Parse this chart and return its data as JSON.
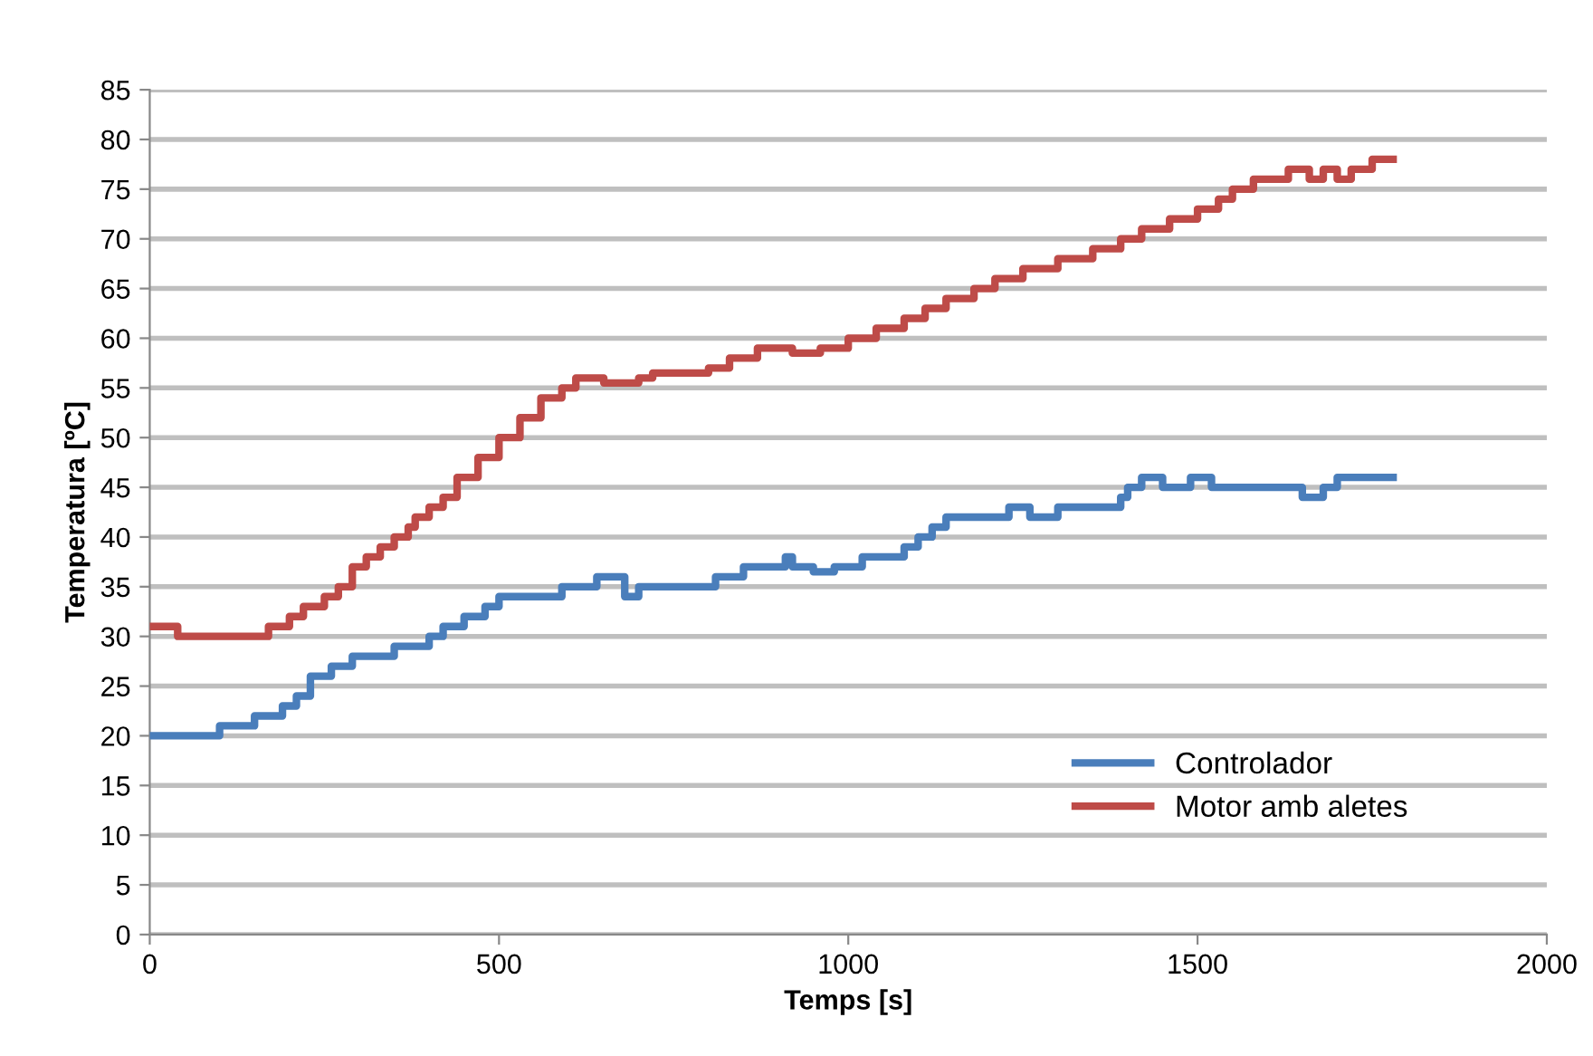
{
  "chart_data": {
    "type": "step",
    "xlabel": "Temps [s]",
    "ylabel": "Temperatura [ºC]",
    "xlim": [
      0,
      2000
    ],
    "xticks": [
      0,
      500,
      1000,
      1500,
      2000
    ],
    "ylim": [
      0,
      85
    ],
    "yticks": [
      0,
      5,
      10,
      15,
      20,
      25,
      30,
      35,
      40,
      45,
      50,
      55,
      60,
      65,
      70,
      75,
      80,
      85
    ],
    "grid": "y",
    "legend": "bottom right",
    "series": [
      {
        "name": "Controlador",
        "color": "#4a7ebb",
        "x": [
          0,
          100,
          150,
          190,
          210,
          230,
          260,
          290,
          350,
          400,
          420,
          450,
          480,
          500,
          590,
          640,
          680,
          700,
          810,
          850,
          910,
          920,
          950,
          980,
          1020,
          1080,
          1100,
          1120,
          1140,
          1230,
          1260,
          1300,
          1390,
          1400,
          1420,
          1450,
          1490,
          1520,
          1650,
          1680,
          1700,
          1780
        ],
        "values": [
          20,
          21,
          22,
          23,
          24,
          26,
          27,
          28,
          29,
          30,
          31,
          32,
          33,
          34,
          35,
          36,
          34,
          35,
          36,
          37,
          38,
          37,
          36.5,
          37,
          38,
          39,
          40,
          41,
          42,
          43,
          42,
          43,
          44,
          45,
          46,
          45,
          46,
          45,
          44,
          45,
          46,
          46
        ]
      },
      {
        "name": "Motor amb aletes",
        "color": "#be4b48",
        "x": [
          0,
          40,
          170,
          200,
          220,
          250,
          270,
          290,
          310,
          330,
          350,
          370,
          380,
          400,
          420,
          440,
          470,
          500,
          530,
          560,
          590,
          610,
          650,
          700,
          720,
          800,
          830,
          870,
          920,
          960,
          1000,
          1040,
          1080,
          1110,
          1140,
          1180,
          1210,
          1250,
          1300,
          1350,
          1390,
          1420,
          1460,
          1500,
          1530,
          1550,
          1580,
          1630,
          1660,
          1680,
          1700,
          1720,
          1750,
          1770,
          1780
        ],
        "values": [
          31,
          30,
          31,
          32,
          33,
          34,
          35,
          37,
          38,
          39,
          40,
          41,
          42,
          43,
          44,
          46,
          48,
          50,
          52,
          54,
          55,
          56,
          55.5,
          56,
          56.5,
          57,
          58,
          59,
          58.5,
          59,
          60,
          61,
          62,
          63,
          64,
          65,
          66,
          67,
          68,
          69,
          70,
          71,
          72,
          73,
          74,
          75,
          76,
          77,
          76,
          77,
          76,
          77,
          78,
          78,
          78
        ]
      }
    ]
  }
}
